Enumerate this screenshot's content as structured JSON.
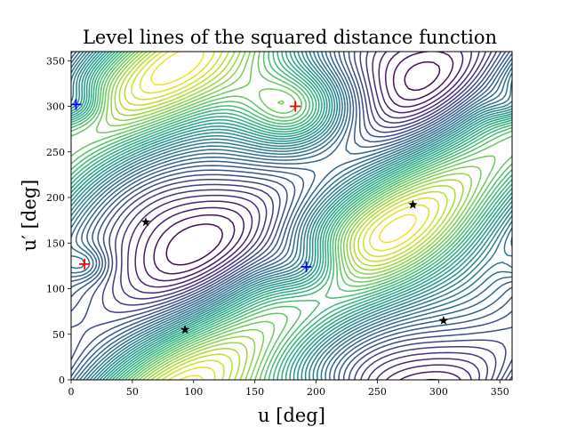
{
  "chart_data": {
    "type": "contour",
    "title": "Level lines of the squared distance function",
    "xlabel": "u [deg]",
    "ylabel": "u′ [deg]",
    "xlim": [
      0,
      360
    ],
    "ylim": [
      0,
      360
    ],
    "xticks": [
      0,
      50,
      100,
      150,
      200,
      250,
      300,
      350
    ],
    "yticks": [
      0,
      50,
      100,
      150,
      200,
      250,
      300,
      350
    ],
    "colormap": "viridis",
    "levels": 40,
    "markers": {
      "maxima": {
        "color": "#ff0000",
        "symbol": "+",
        "points": [
          [
            183,
            300
          ],
          [
            11,
            127
          ]
        ]
      },
      "minima": {
        "color": "#0000ff",
        "symbol": "+",
        "points": [
          [
            4,
            302
          ],
          [
            192,
            124
          ]
        ]
      },
      "saddles": {
        "color": "#000000",
        "symbol": "star",
        "points": [
          [
            61,
            173
          ],
          [
            93,
            55
          ],
          [
            279,
            192
          ],
          [
            304,
            65
          ]
        ]
      }
    }
  }
}
